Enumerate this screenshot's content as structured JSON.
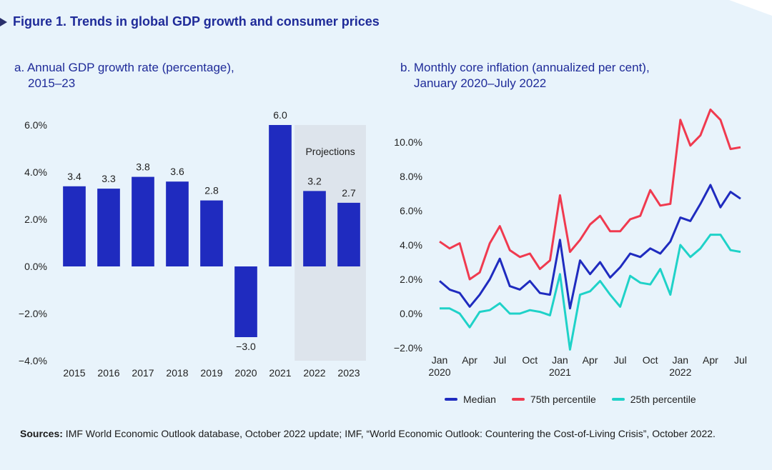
{
  "figure_title": "Figure 1.  Trends in global GDP growth and consumer prices",
  "panel_a": {
    "subtitle_line1": "a. Annual GDP growth rate (percentage),",
    "subtitle_line2": "2015–23",
    "projections_label": "Projections"
  },
  "panel_b": {
    "subtitle_line1": "b. Monthly core inflation (annualized per cent),",
    "subtitle_line2": "January 2020–July 2022"
  },
  "colors": {
    "bar": "#1f2bbf",
    "median": "#1f2bbf",
    "p75": "#f03a4f",
    "p25": "#1fd2c8",
    "projection_band": "#dde4ec"
  },
  "chart_data": [
    {
      "type": "bar",
      "categories": [
        "2015",
        "2016",
        "2017",
        "2018",
        "2019",
        "2020",
        "2021",
        "2022",
        "2023"
      ],
      "values": [
        3.4,
        3.3,
        3.8,
        3.6,
        2.8,
        -3.0,
        6.0,
        3.2,
        2.7
      ],
      "value_labels": [
        "3.4",
        "3.3",
        "3.8",
        "3.6",
        "2.8",
        "−3.0",
        "6.0",
        "3.2",
        "2.7"
      ],
      "ylim": [
        -4,
        6
      ],
      "yticks": [
        -4,
        -2,
        0,
        2,
        4,
        6
      ],
      "ytick_labels": [
        "−4.0%",
        "−2.0%",
        "0.0%",
        "2.0%",
        "4.0%",
        "6.0%"
      ],
      "projection_categories": [
        "2022",
        "2023"
      ],
      "annotation": "Projections",
      "xlabel": "",
      "ylabel": ""
    },
    {
      "type": "line",
      "x_count": 31,
      "x_tick_labels": [
        {
          "index": 0,
          "label": "Jan",
          "year": "2020"
        },
        {
          "index": 3,
          "label": "Apr"
        },
        {
          "index": 6,
          "label": "Jul"
        },
        {
          "index": 9,
          "label": "Oct"
        },
        {
          "index": 12,
          "label": "Jan",
          "year": "2021"
        },
        {
          "index": 15,
          "label": "Apr"
        },
        {
          "index": 18,
          "label": "Jul"
        },
        {
          "index": 21,
          "label": "Oct"
        },
        {
          "index": 24,
          "label": "Jan",
          "year": "2022"
        },
        {
          "index": 27,
          "label": "Apr"
        },
        {
          "index": 30,
          "label": "Jul"
        }
      ],
      "ylim": [
        -2,
        11
      ],
      "yticks": [
        -2,
        0,
        2,
        4,
        6,
        8,
        10
      ],
      "ytick_labels": [
        "−2.0%",
        "0.0%",
        "2.0%",
        "4.0%",
        "6.0%",
        "8.0%",
        "10.0%"
      ],
      "series": [
        {
          "name": "Median",
          "key": "median",
          "values": [
            1.9,
            1.4,
            1.2,
            0.4,
            1.1,
            2.0,
            3.2,
            1.6,
            1.4,
            1.9,
            1.2,
            1.1,
            4.3,
            0.3,
            3.1,
            2.3,
            3.0,
            2.1,
            2.7,
            3.5,
            3.3,
            3.8,
            3.5,
            4.2,
            5.6,
            5.4,
            6.4,
            7.5,
            6.2,
            7.1,
            6.7
          ]
        },
        {
          "name": "75th percentile",
          "key": "p75",
          "values": [
            4.2,
            3.8,
            4.1,
            2.0,
            2.4,
            4.1,
            5.1,
            3.7,
            3.3,
            3.5,
            2.6,
            3.1,
            6.9,
            3.6,
            4.3,
            5.2,
            5.7,
            4.8,
            4.8,
            5.5,
            5.7,
            7.2,
            6.3,
            6.4,
            11.3,
            9.8,
            10.4,
            11.9,
            11.3,
            9.6,
            9.7
          ]
        },
        {
          "name": "25th percentile",
          "key": "p25",
          "values": [
            0.3,
            0.3,
            0.0,
            -0.8,
            0.1,
            0.2,
            0.6,
            0.0,
            0.0,
            0.2,
            0.1,
            -0.1,
            2.3,
            -2.1,
            1.1,
            1.3,
            1.9,
            1.1,
            0.4,
            2.2,
            1.8,
            1.7,
            2.6,
            1.1,
            4.0,
            3.3,
            3.8,
            4.6,
            4.6,
            3.7,
            3.6
          ]
        }
      ],
      "legend_position": "bottom-center",
      "xlabel": "",
      "ylabel": ""
    }
  ],
  "sources": {
    "label": "Sources:",
    "text": " IMF World Economic Outlook database, October 2022 update; IMF, “World Economic Outlook: Countering the Cost-of-Living Crisis”, October 2022."
  }
}
